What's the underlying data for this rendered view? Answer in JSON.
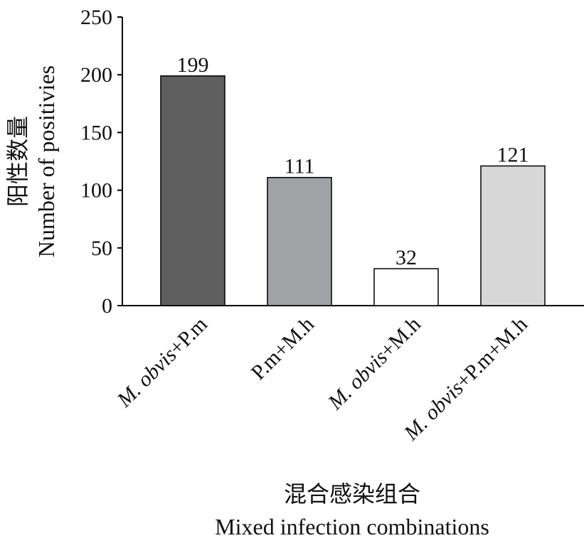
{
  "chart_data": {
    "type": "bar",
    "categories": [
      {
        "italic": "M. obvis",
        "rest": "+P.m"
      },
      {
        "italic": "",
        "rest": "P.m+M.h"
      },
      {
        "italic": "M. obvis",
        "rest": "+M.h"
      },
      {
        "italic": "M. obvis",
        "rest": "+P.m+M.h"
      }
    ],
    "values": [
      199,
      111,
      32,
      121
    ],
    "data_labels": [
      "199",
      "111",
      "32",
      "121"
    ],
    "bar_colors": [
      "#5f5f5f",
      "#a1a2a5",
      "#ffffff",
      "#d7d7d7"
    ],
    "bar_stroke": "#000000",
    "ylim": [
      0,
      250
    ],
    "yticks": [
      0,
      50,
      100,
      150,
      200,
      250
    ],
    "ylabel_cn": "阳性数量",
    "ylabel": "Number of positivies",
    "xlabel_cn": "混合感染组合",
    "xlabel": "Mixed infection combinations",
    "grid": false,
    "legend": "none"
  }
}
